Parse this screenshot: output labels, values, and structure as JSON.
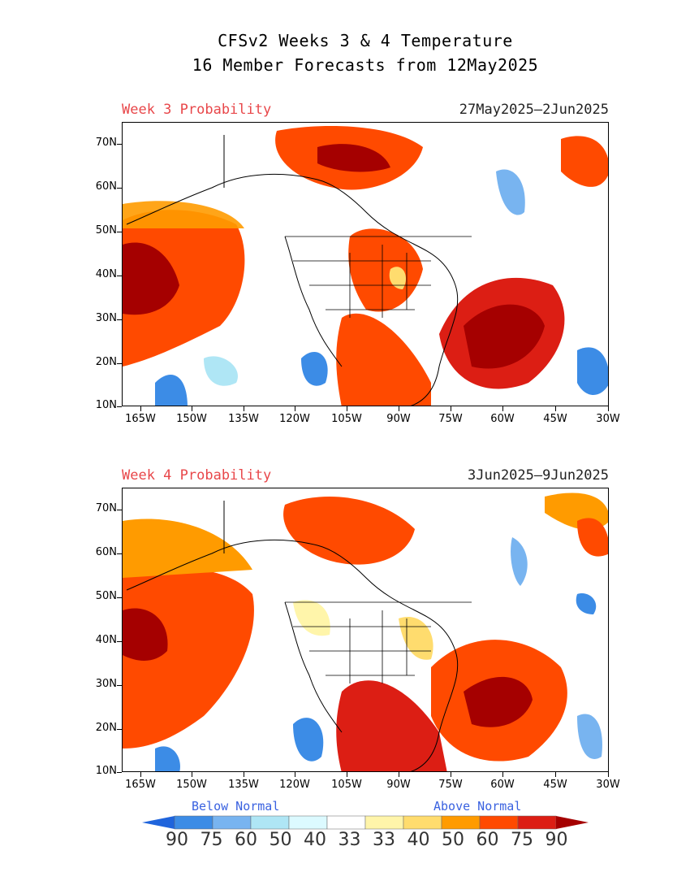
{
  "title": {
    "line1": "CFSv2 Weeks 3 & 4 Temperature",
    "line2": "16 Member Forecasts from 12May2025"
  },
  "panels": [
    {
      "label": "Week 3 Probability",
      "dates": "27May2025—2Jun2025"
    },
    {
      "label": "Week 4 Probability",
      "dates": "3Jun2025—9Jun2025"
    }
  ],
  "axes": {
    "lat_labels": [
      "70N",
      "60N",
      "50N",
      "40N",
      "30N",
      "20N",
      "10N"
    ],
    "lon_labels": [
      "165W",
      "150W",
      "135W",
      "120W",
      "105W",
      "90W",
      "75W",
      "60W",
      "45W",
      "30W"
    ],
    "lat_range": [
      10,
      75
    ],
    "lon_range": [
      -170,
      -30
    ]
  },
  "colorbar": {
    "below_label": "Below Normal",
    "above_label": "Above Normal",
    "values": [
      "90",
      "75",
      "60",
      "50",
      "40",
      "33",
      "33",
      "40",
      "50",
      "60",
      "75",
      "90"
    ],
    "colors": [
      "#1f64dc",
      "#3c8ce6",
      "#78b4f0",
      "#afe6f5",
      "#dcfaff",
      "#ffffff",
      "#fff5aa",
      "#ffdc6e",
      "#ff9b00",
      "#ff4a00",
      "#dc1e14",
      "#a50000"
    ]
  },
  "colors": {
    "panel_label": "#e8474a",
    "category_label": "#3a62e0"
  }
}
